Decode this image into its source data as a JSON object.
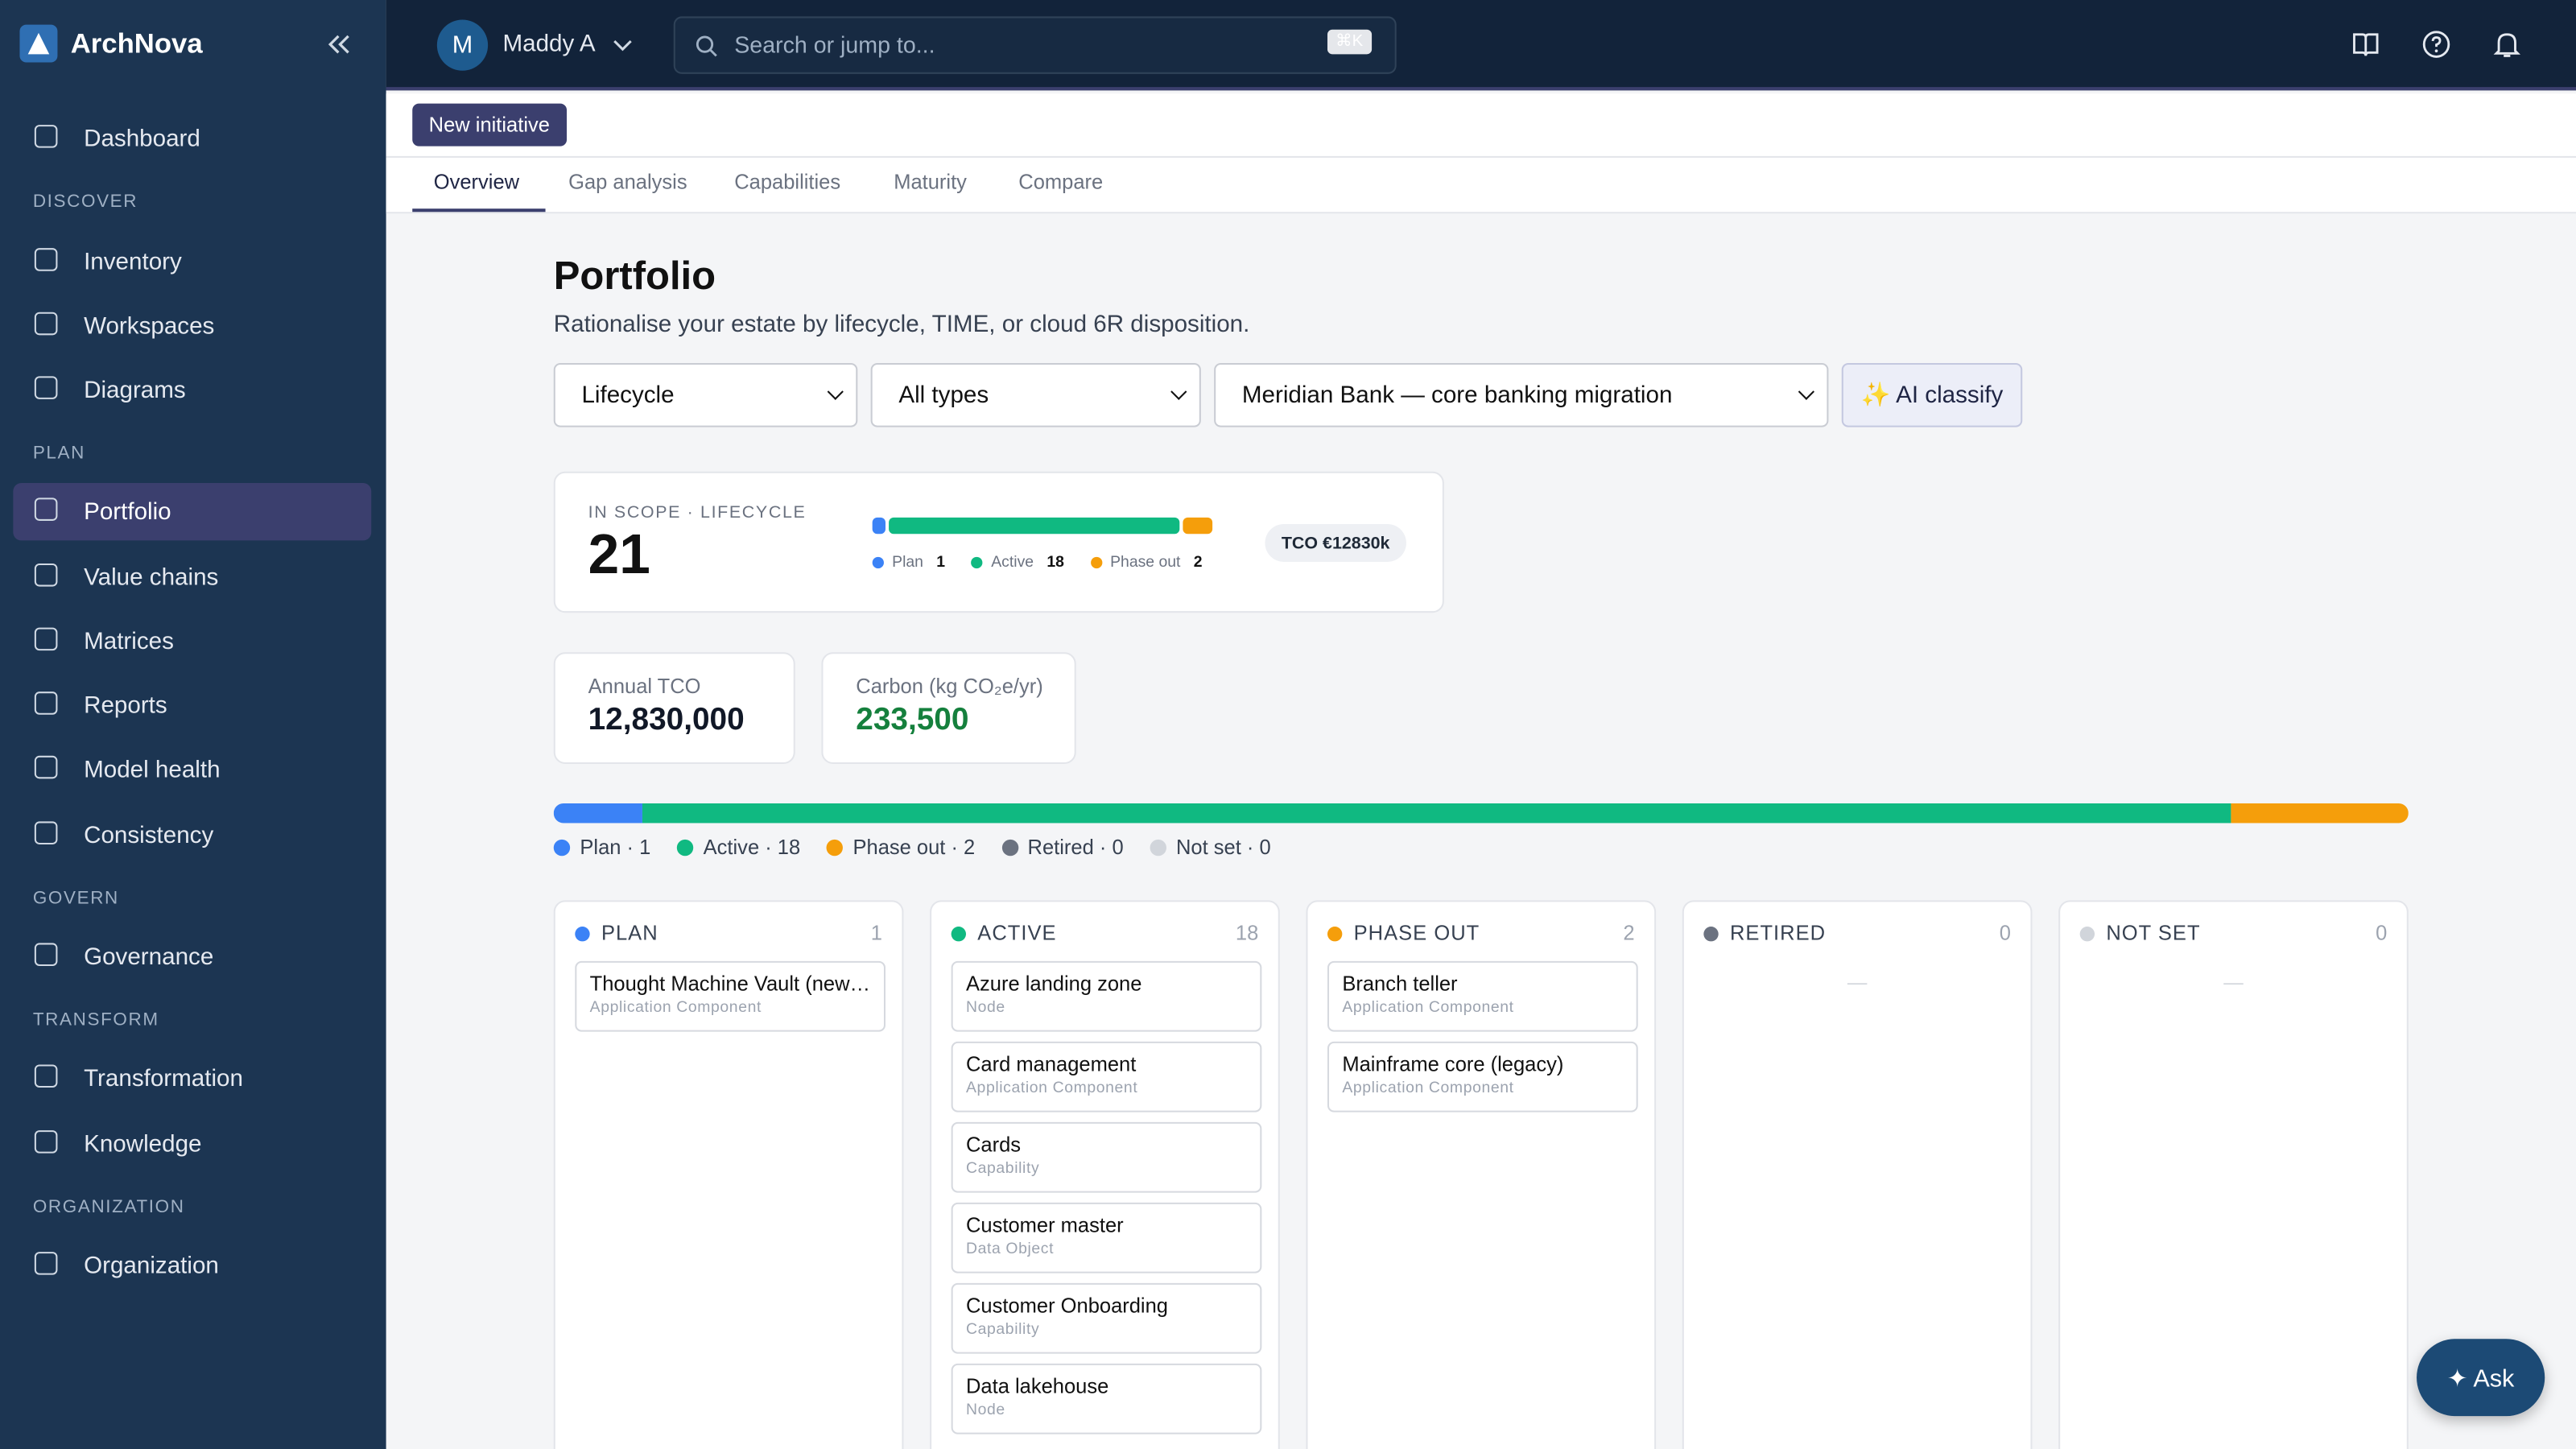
{
  "sidebar": {
    "brand": "ArchNova",
    "nav": [
      {
        "label": "Dashboard"
      },
      {
        "section": "DISCOVER"
      },
      {
        "label": "Inventory"
      },
      {
        "label": "Workspaces"
      },
      {
        "label": "Diagrams"
      },
      {
        "section": "PLAN"
      },
      {
        "label": "Portfolio",
        "active": true
      },
      {
        "label": "Value chains"
      },
      {
        "label": "Matrices"
      },
      {
        "label": "Reports"
      },
      {
        "label": "Model health"
      },
      {
        "label": "Consistency"
      },
      {
        "section": "GOVERN"
      },
      {
        "label": "Governance"
      },
      {
        "section": "TRANSFORM"
      },
      {
        "label": "Transformation"
      },
      {
        "label": "Knowledge"
      },
      {
        "section": "ORGANIZATION"
      },
      {
        "label": "Organization"
      }
    ]
  },
  "topbar": {
    "user_initial": "M",
    "user": "Maddy A",
    "search_placeholder": "Search or jump to...",
    "shortcut": "⌘K"
  },
  "toolbar": {
    "button": "New initiative"
  },
  "tabs": [
    {
      "label": "Overview",
      "active": true
    },
    {
      "label": "Gap analysis"
    },
    {
      "label": "Capabilities"
    },
    {
      "label": "Maturity"
    },
    {
      "label": "Compare"
    }
  ],
  "page": {
    "title": "Portfolio",
    "subtitle": "Rationalise your estate by lifecycle, TIME, or cloud 6R disposition.",
    "filters": [
      "Lifecycle",
      "All types",
      "Meridian Bank — core banking migration"
    ],
    "ai_button": "✨ AI classify"
  },
  "scope_card": {
    "label": "IN SCOPE · LIFECYCLE",
    "count": 21,
    "tco": "TCO €12830k"
  },
  "metrics": [
    {
      "label": "Annual TCO",
      "value": "12,830,000",
      "color": "#111827"
    },
    {
      "label": "Carbon (kg CO₂e/yr)",
      "value": "233,500",
      "color": "#15803d"
    }
  ],
  "lifecycle": [
    {
      "name": "Plan",
      "heading": "PLAN",
      "count": 1,
      "label": "Plan · 1",
      "color": "#3b82f6",
      "cards": [
        {
          "title": "Thought Machine Vault (new…",
          "type": "Application Component"
        }
      ]
    },
    {
      "name": "Active",
      "heading": "ACTIVE",
      "count": 18,
      "label": "Active · 18",
      "color": "#10b981",
      "cards": [
        {
          "title": "Azure landing zone",
          "type": "Node"
        },
        {
          "title": "Card management",
          "type": "Application Component"
        },
        {
          "title": "Cards",
          "type": "Capability"
        },
        {
          "title": "Customer master",
          "type": "Data Object"
        },
        {
          "title": "Customer Onboarding",
          "type": "Capability"
        },
        {
          "title": "Data lakehouse",
          "type": "Node"
        }
      ]
    },
    {
      "name": "Phase out",
      "heading": "PHASE OUT",
      "count": 2,
      "label": "Phase out · 2",
      "color": "#f59e0b",
      "cards": [
        {
          "title": "Branch teller",
          "type": "Application Component"
        },
        {
          "title": "Mainframe core (legacy)",
          "type": "Application Component"
        }
      ]
    },
    {
      "name": "Retired",
      "heading": "RETIRED",
      "count": 0,
      "label": "Retired · 0",
      "color": "#6b7280",
      "empty": "—",
      "cards": []
    },
    {
      "name": "Not set",
      "heading": "NOT SET",
      "count": 0,
      "label": "Not set · 0",
      "color": "#d1d5db",
      "empty": "—",
      "cards": []
    }
  ],
  "ask_button": "✦ Ask"
}
